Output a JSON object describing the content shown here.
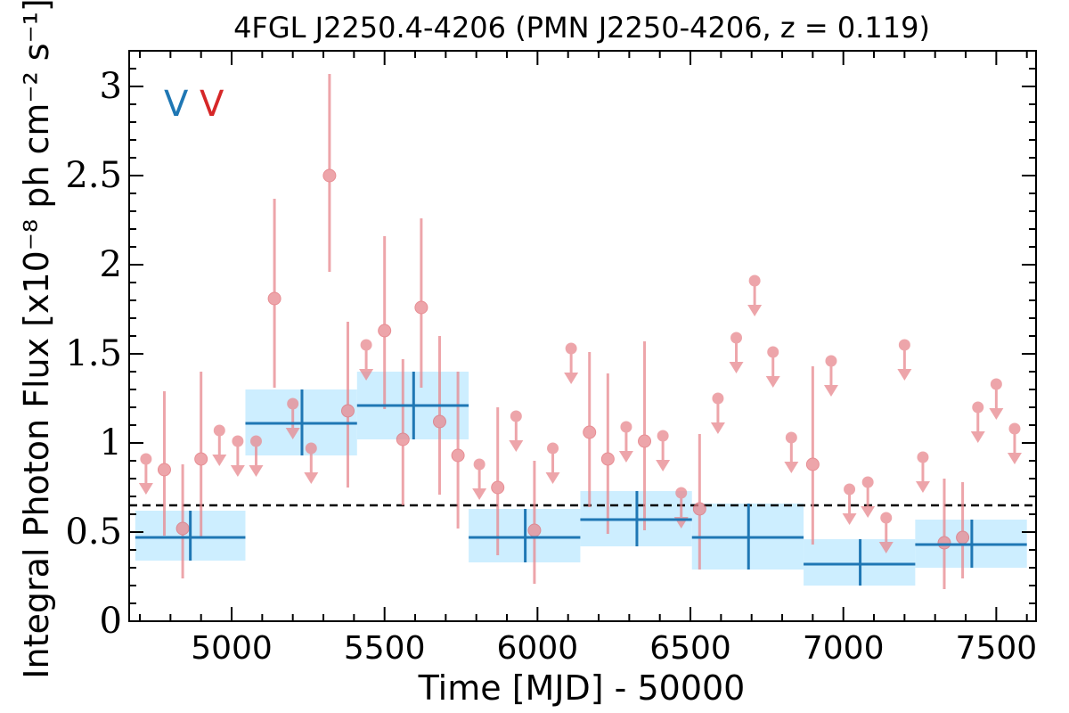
{
  "chart_data": {
    "type": "scatter",
    "title": "4FGL J2250.4-4206 (PMN J2250-4206, z = 0.119)",
    "xlabel": "Time [MJD] - 50000",
    "ylabel": "Integral Photon Flux [x10⁻⁸ ph cm⁻² s⁻¹]",
    "xlim": [
      4665,
      7630
    ],
    "ylim": [
      0,
      3.2
    ],
    "xticks": [
      5000,
      5500,
      6000,
      6500,
      7000,
      7500
    ],
    "xtick_labels": [
      "5000",
      "5500",
      "6000",
      "6500",
      "7000",
      "7500"
    ],
    "yticks": [
      0,
      0.5,
      1,
      1.5,
      2,
      2.5,
      3
    ],
    "ytick_labels": [
      "0",
      "0.5",
      "1",
      "1.5",
      "2",
      "2.5",
      "3"
    ],
    "annotations": [
      {
        "text": "V",
        "color": "#1f77b4"
      },
      {
        "text": "V",
        "color": "#d62728"
      }
    ],
    "reference_line": {
      "y": 0.65,
      "style": "dashed",
      "color": "#000000"
    },
    "long_bins": {
      "color": "#1f77b4",
      "band_color": "#cdeeff",
      "points": [
        {
          "x": 4865,
          "x0": 4685,
          "x1": 5045,
          "y": 0.47,
          "y0": 0.34,
          "y1": 0.62
        },
        {
          "x": 5230,
          "x0": 5045,
          "x1": 5410,
          "y": 1.11,
          "y0": 0.93,
          "y1": 1.3
        },
        {
          "x": 5595,
          "x0": 5410,
          "x1": 5775,
          "y": 1.21,
          "y0": 1.02,
          "y1": 1.4
        },
        {
          "x": 5960,
          "x0": 5775,
          "x1": 6140,
          "y": 0.47,
          "y0": 0.33,
          "y1": 0.63
        },
        {
          "x": 6325,
          "x0": 6140,
          "x1": 6505,
          "y": 0.57,
          "y0": 0.42,
          "y1": 0.73
        },
        {
          "x": 6690,
          "x0": 6505,
          "x1": 6870,
          "y": 0.47,
          "y0": 0.29,
          "y1": 0.66
        },
        {
          "x": 7055,
          "x0": 6870,
          "x1": 7235,
          "y": 0.32,
          "y0": 0.2,
          "y1": 0.46
        },
        {
          "x": 7420,
          "x0": 7235,
          "x1": 7600,
          "y": 0.43,
          "y0": 0.3,
          "y1": 0.57
        }
      ]
    },
    "short_bins": {
      "color": "#e8888e",
      "detections": [
        {
          "x": 4780,
          "y": 0.85,
          "y0": 0.48,
          "y1": 1.29
        },
        {
          "x": 4840,
          "y": 0.52,
          "y0": 0.24,
          "y1": 0.88
        },
        {
          "x": 4900,
          "y": 0.91,
          "y0": 0.47,
          "y1": 1.4
        },
        {
          "x": 5140,
          "y": 1.81,
          "y0": 1.31,
          "y1": 2.37
        },
        {
          "x": 5320,
          "y": 2.5,
          "y0": 1.96,
          "y1": 3.07
        },
        {
          "x": 5380,
          "y": 1.18,
          "y0": 0.75,
          "y1": 1.68
        },
        {
          "x": 5500,
          "y": 1.63,
          "y0": 1.19,
          "y1": 2.16
        },
        {
          "x": 5560,
          "y": 1.02,
          "y0": 0.65,
          "y1": 1.47
        },
        {
          "x": 5620,
          "y": 1.76,
          "y0": 1.31,
          "y1": 2.26
        },
        {
          "x": 5680,
          "y": 1.12,
          "y0": 0.71,
          "y1": 1.6
        },
        {
          "x": 5740,
          "y": 0.93,
          "y0": 0.52,
          "y1": 1.4
        },
        {
          "x": 5870,
          "y": 0.75,
          "y0": 0.37,
          "y1": 1.2
        },
        {
          "x": 5990,
          "y": 0.51,
          "y0": 0.21,
          "y1": 0.9
        },
        {
          "x": 6170,
          "y": 1.06,
          "y0": 0.64,
          "y1": 1.51
        },
        {
          "x": 6230,
          "y": 0.91,
          "y0": 0.49,
          "y1": 1.39
        },
        {
          "x": 6350,
          "y": 1.01,
          "y0": 0.51,
          "y1": 1.57
        },
        {
          "x": 6530,
          "y": 0.63,
          "y0": 0.29,
          "y1": 1.05
        },
        {
          "x": 6900,
          "y": 0.88,
          "y0": 0.43,
          "y1": 1.43
        },
        {
          "x": 7330,
          "y": 0.44,
          "y0": 0.18,
          "y1": 0.8
        },
        {
          "x": 7390,
          "y": 0.47,
          "y0": 0.24,
          "y1": 0.78
        }
      ],
      "upper_limits": [
        {
          "x": 4720,
          "y": 0.91
        },
        {
          "x": 4960,
          "y": 1.07
        },
        {
          "x": 5020,
          "y": 1.01
        },
        {
          "x": 5080,
          "y": 1.01
        },
        {
          "x": 5200,
          "y": 1.22
        },
        {
          "x": 5260,
          "y": 0.97
        },
        {
          "x": 5440,
          "y": 1.55
        },
        {
          "x": 5810,
          "y": 0.88
        },
        {
          "x": 5930,
          "y": 1.15
        },
        {
          "x": 6050,
          "y": 0.97
        },
        {
          "x": 6110,
          "y": 1.53
        },
        {
          "x": 6290,
          "y": 1.09
        },
        {
          "x": 6410,
          "y": 1.04
        },
        {
          "x": 6470,
          "y": 0.72
        },
        {
          "x": 6590,
          "y": 1.25
        },
        {
          "x": 6650,
          "y": 1.59
        },
        {
          "x": 6710,
          "y": 1.91
        },
        {
          "x": 6770,
          "y": 1.51
        },
        {
          "x": 6830,
          "y": 1.03
        },
        {
          "x": 6960,
          "y": 1.46
        },
        {
          "x": 7020,
          "y": 0.74
        },
        {
          "x": 7080,
          "y": 0.78
        },
        {
          "x": 7140,
          "y": 0.58
        },
        {
          "x": 7200,
          "y": 1.55
        },
        {
          "x": 7260,
          "y": 0.92
        },
        {
          "x": 7440,
          "y": 1.2
        },
        {
          "x": 7500,
          "y": 1.33
        },
        {
          "x": 7560,
          "y": 1.08
        }
      ]
    }
  }
}
